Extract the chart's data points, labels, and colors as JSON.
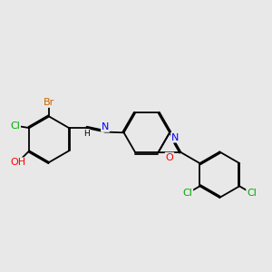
{
  "bg": "#e8e8e8",
  "bond_color": "#000000",
  "colors": {
    "Br": "#cc6600",
    "Cl": "#00aa00",
    "O": "#ff0000",
    "N": "#0000ff",
    "C": "#000000",
    "H": "#000000"
  },
  "lw": 1.3,
  "fs": 7.5,
  "dbl_off": 0.038
}
